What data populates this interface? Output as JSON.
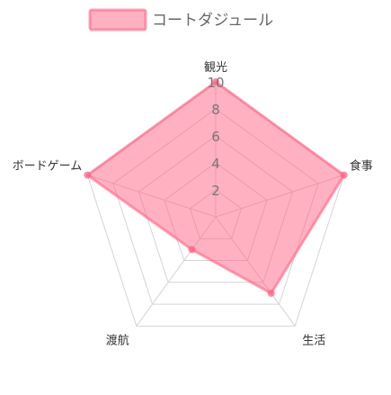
{
  "chart_data": {
    "type": "radar",
    "title": "",
    "legend": {
      "position": "top"
    },
    "axes": [
      "観光",
      "食事",
      "生活",
      "渡航",
      "ボードゲーム"
    ],
    "rlim": [
      0,
      10
    ],
    "ticks": [
      2,
      4,
      6,
      8,
      10
    ],
    "grid": true,
    "series": [
      {
        "name": "コートダジュール",
        "values": [
          10,
          10,
          7,
          3,
          10
        ],
        "color": "#ff6384",
        "fill": "#ff6384"
      }
    ]
  },
  "colors": {
    "grid": "#d4d4d4",
    "tick_text": "#777777",
    "label_text": "#333333",
    "legend_text": "#666666"
  }
}
